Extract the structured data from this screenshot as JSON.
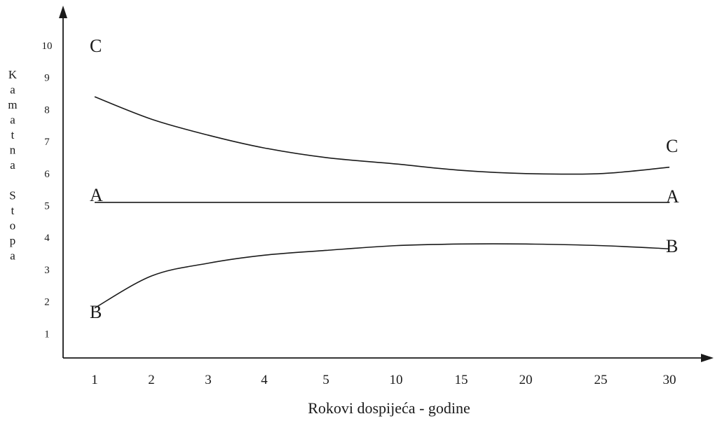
{
  "chart_data": {
    "type": "line",
    "title": "",
    "xlabel": "Rokovi dospijeća - godine",
    "ylabel": "Kamatna Stopa",
    "ylabel_chars": [
      "K",
      "a",
      "m",
      "a",
      "t",
      "n",
      "a",
      "",
      "S",
      "t",
      "o",
      "p",
      "a"
    ],
    "categories": [
      "1",
      "2",
      "3",
      "4",
      "5",
      "10",
      "15",
      "20",
      "25",
      "30"
    ],
    "y_ticks": [
      "1",
      "2",
      "3",
      "4",
      "5",
      "6",
      "7",
      "8",
      "9",
      "10"
    ],
    "ylim": [
      0,
      10
    ],
    "grid": false,
    "series": [
      {
        "name": "C",
        "start_label": "C",
        "end_label": "C",
        "values": [
          8.4,
          7.7,
          7.2,
          6.8,
          6.5,
          6.3,
          6.1,
          6.0,
          6.0,
          6.2
        ]
      },
      {
        "name": "A",
        "start_label": "A",
        "end_label": "A",
        "values": [
          5.1,
          5.1,
          5.1,
          5.1,
          5.1,
          5.1,
          5.1,
          5.1,
          5.1,
          5.1
        ]
      },
      {
        "name": "B",
        "start_label": "B",
        "end_label": "B",
        "values": [
          1.8,
          2.8,
          3.2,
          3.45,
          3.6,
          3.75,
          3.8,
          3.8,
          3.75,
          3.65
        ]
      }
    ]
  }
}
